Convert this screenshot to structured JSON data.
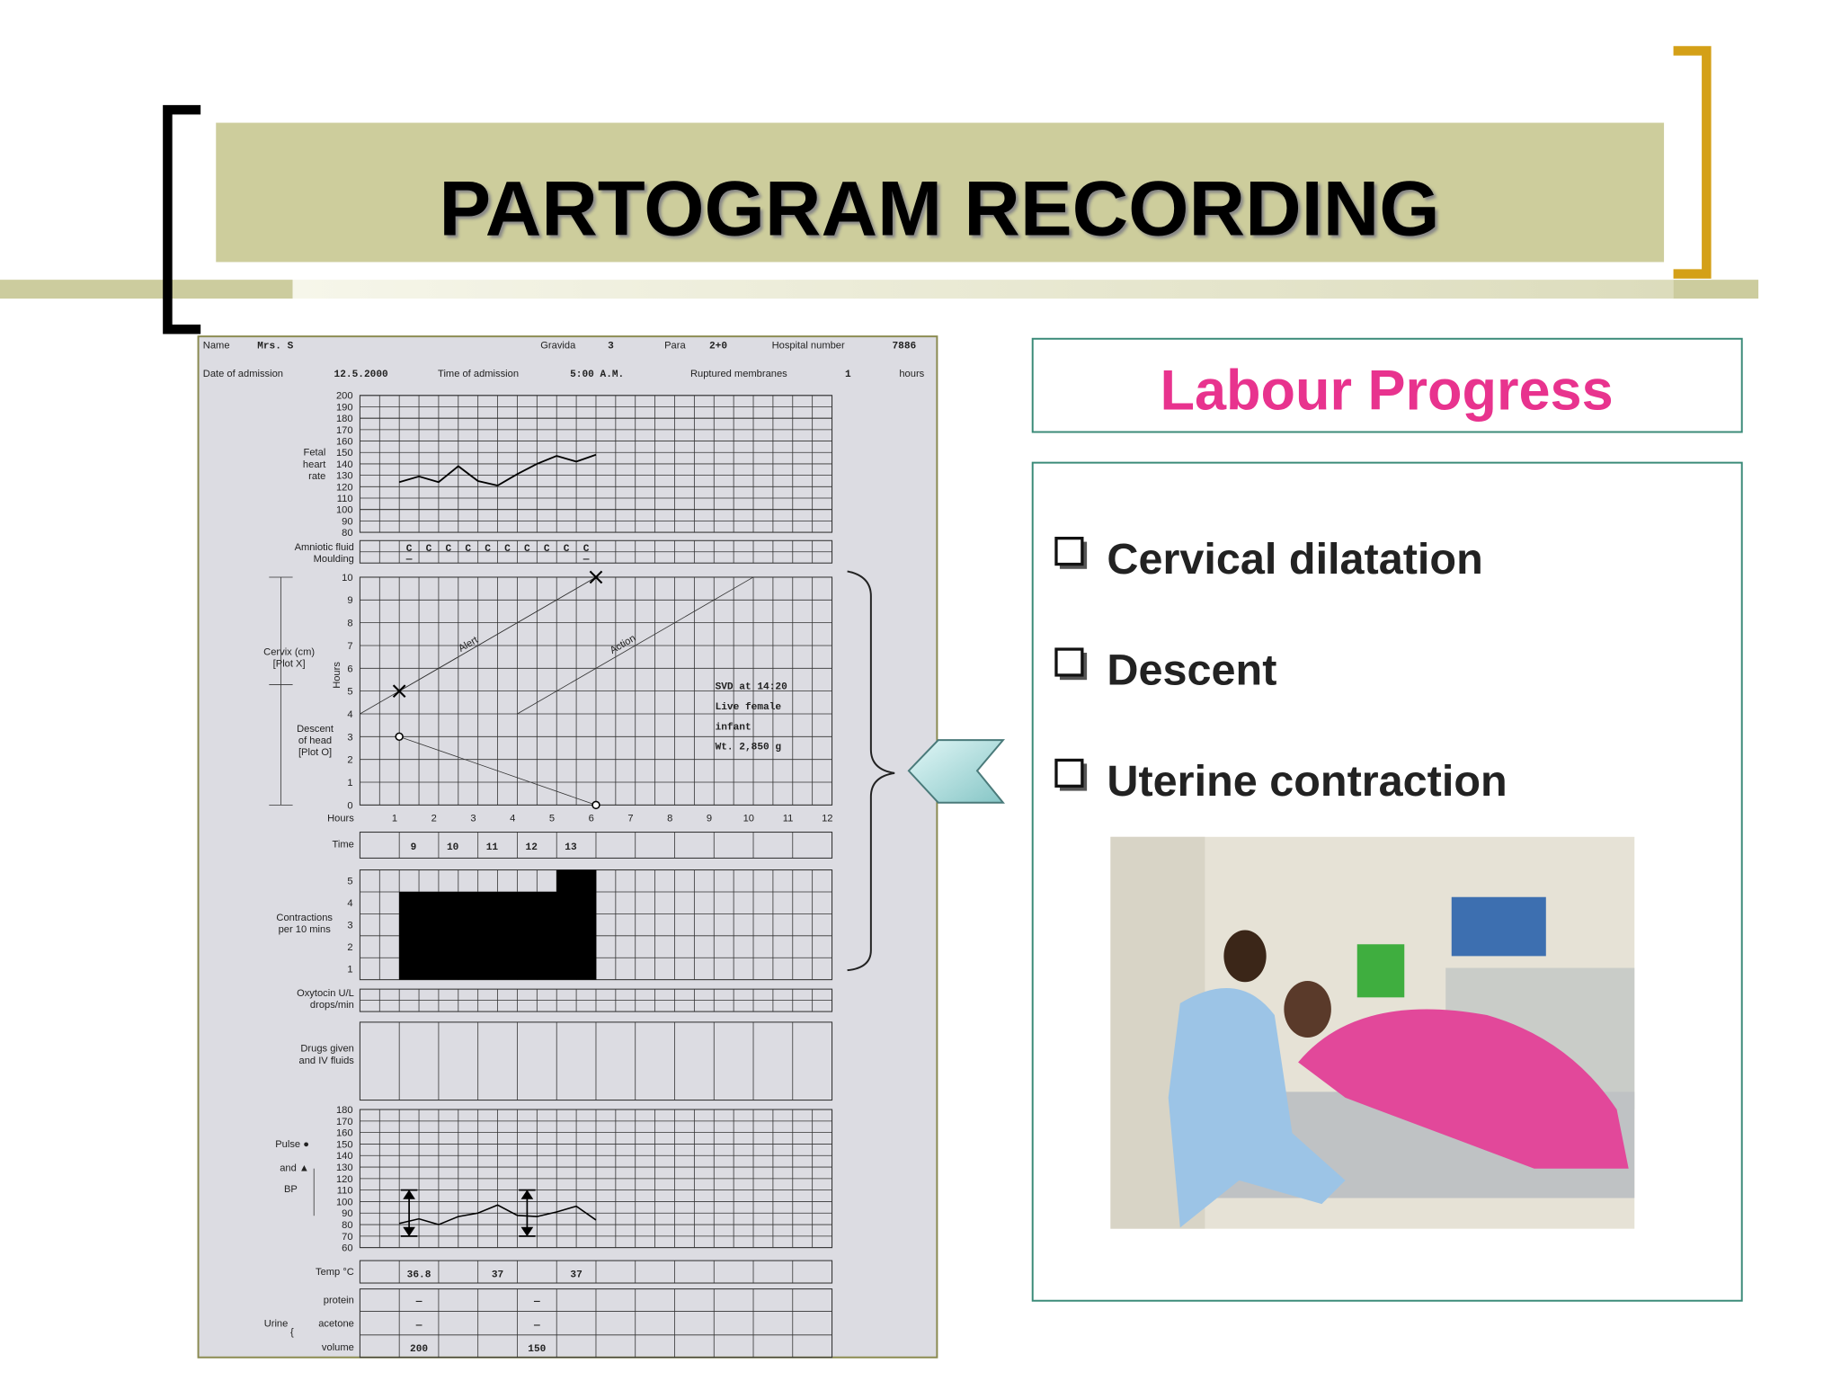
{
  "slide": {
    "title": "PARTOGRAM RECORDING"
  },
  "partogram": {
    "header": [
      {
        "label": "Name",
        "value": "Mrs. S"
      },
      {
        "label": "Gravida",
        "value": "3"
      },
      {
        "label": "Para",
        "value": "2+0"
      },
      {
        "label": "Hospital number",
        "value": "7886"
      },
      {
        "label": "Date of admission",
        "value": "12.5.2000"
      },
      {
        "label": "Time of admission",
        "value": "5:00 A.M."
      },
      {
        "label": "Ruptured membranes",
        "value": "1"
      }
    ],
    "membranes_unit": "hours",
    "fhr": {
      "label": [
        "Fetal",
        "heart",
        "rate"
      ],
      "ylim": [
        80,
        200
      ],
      "yticks": [
        200,
        190,
        180,
        170,
        160,
        150,
        140,
        130,
        120,
        110,
        100,
        90,
        80
      ],
      "reference_lines": [
        180,
        100
      ],
      "x": [
        1,
        1.5,
        2,
        2.5,
        3,
        3.5,
        4,
        4.5,
        5,
        5.5,
        6
      ],
      "values": [
        124,
        129,
        124,
        138,
        125,
        121,
        131,
        140,
        147,
        142,
        148
      ]
    },
    "amniotic": {
      "labels": [
        "Amniotic fluid",
        "Moulding"
      ],
      "fluid": [
        "C",
        "C",
        "C",
        "C",
        "C",
        "C",
        "C",
        "C",
        "C",
        "C"
      ],
      "moulding": [
        "—",
        null,
        null,
        null,
        null,
        null,
        null,
        null,
        null,
        "—"
      ]
    },
    "cervix": {
      "label": [
        "Cervix (cm)",
        "[Plot X]"
      ],
      "hours_label": "Hours",
      "descent_label": [
        "Descent",
        "of head",
        "[Plot O]"
      ],
      "ylim": [
        0,
        10
      ],
      "yticks": [
        0,
        1,
        2,
        3,
        4,
        5,
        6,
        7,
        8,
        9,
        10
      ],
      "xlim": [
        0,
        12
      ],
      "xticks": [
        1,
        2,
        3,
        4,
        5,
        6,
        7,
        8,
        9,
        10,
        11,
        12
      ],
      "x_label": "Hours",
      "dilatation": {
        "x": [
          1,
          6
        ],
        "values": [
          5,
          10
        ]
      },
      "descent": {
        "x": [
          1,
          6
        ],
        "values": [
          3,
          0
        ]
      },
      "alert": {
        "label": "Alert",
        "x": [
          0,
          6
        ],
        "values": [
          4,
          10
        ]
      },
      "action": {
        "label": "Action",
        "x": [
          4,
          10
        ],
        "values": [
          4,
          10
        ]
      },
      "note": [
        "SVD at 14:20",
        "Live female",
        "infant",
        "Wt. 2,850 g"
      ]
    },
    "time": {
      "label": "Time",
      "values": [
        "9",
        "10",
        "11",
        "12",
        "13"
      ]
    },
    "contractions": {
      "label": [
        "Contractions",
        "per 10 mins"
      ],
      "ylim": [
        0,
        5
      ],
      "yticks": [
        1,
        2,
        3,
        4,
        5
      ],
      "x": [
        1,
        1.5,
        2,
        2.5,
        3,
        3.5,
        4,
        4.5,
        5,
        5.5
      ],
      "values": [
        4,
        4,
        4,
        4,
        4,
        4,
        4,
        4,
        5,
        5
      ]
    },
    "oxytocin": [
      "Oxytocin U/L",
      "drops/min"
    ],
    "drugs": [
      "Drugs given",
      "and IV fluids"
    ],
    "pulse_bp": {
      "labels": [
        "Pulse ●",
        "and ▲",
        "BP"
      ],
      "ylim": [
        60,
        180
      ],
      "yticks": [
        180,
        170,
        160,
        150,
        140,
        130,
        120,
        110,
        100,
        90,
        80,
        70,
        60
      ],
      "pulse": {
        "x": [
          1,
          1.5,
          2,
          2.5,
          3,
          3.5,
          4,
          4.5,
          5,
          5.5,
          6
        ],
        "values": [
          81,
          85,
          80,
          87,
          90,
          97,
          88,
          87,
          91,
          96,
          84
        ]
      },
      "bp": {
        "x": [
          1.25,
          4.25
        ],
        "systolic": [
          110,
          110
        ],
        "diastolic": [
          70,
          70
        ]
      }
    },
    "temp": {
      "label": "Temp °C",
      "values": [
        "36.8",
        "37",
        "37"
      ]
    },
    "urine": {
      "label": "Urine",
      "rows": [
        "protein",
        "acetone",
        "volume"
      ],
      "protein": [
        "—",
        "—"
      ],
      "acetone": [
        "—",
        "—"
      ],
      "volume": [
        "200",
        "150"
      ]
    }
  },
  "panel": {
    "heading": "Labour Progress",
    "items": [
      "Cervical dilatation",
      "Descent",
      "Uterine contraction"
    ]
  }
}
